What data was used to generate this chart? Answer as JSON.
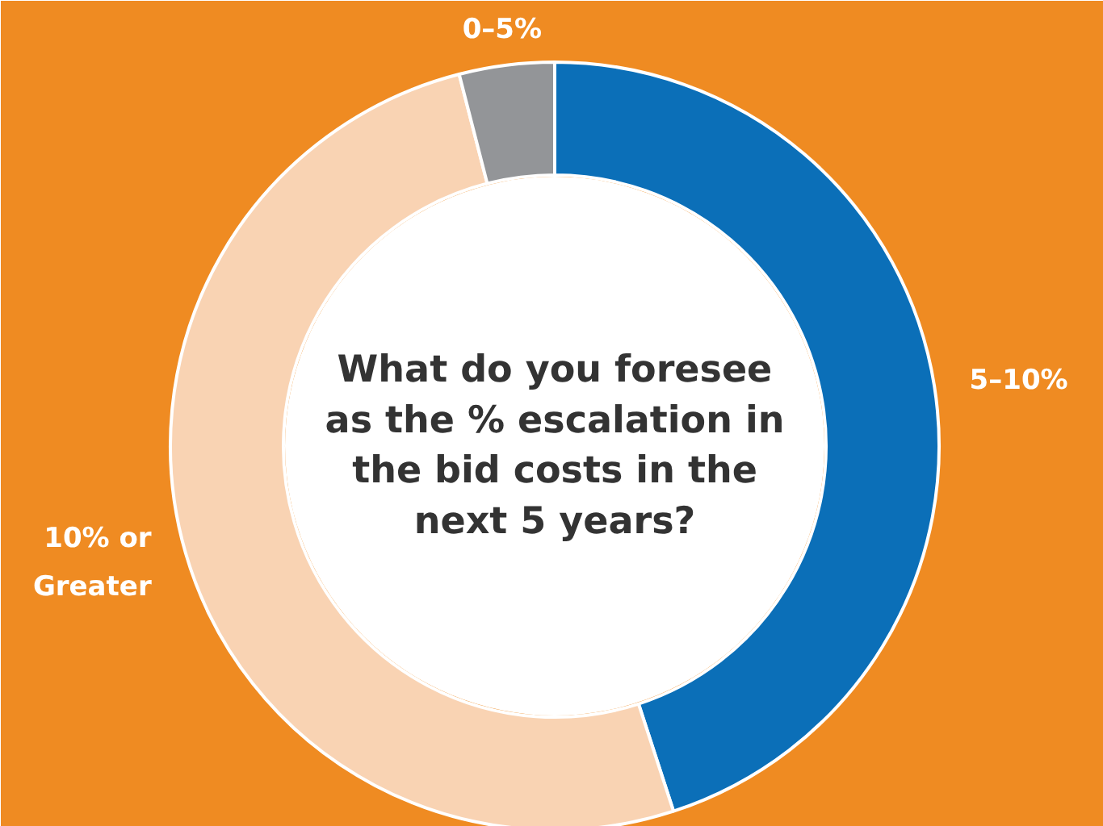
{
  "chart_data": {
    "type": "donut",
    "title": "What do you foresee\nas the % escalation in\nthe bid costs in the\nnext 5 years?",
    "categories": [
      "5–10%",
      "10% or\nGreater",
      "0–5%"
    ],
    "values": [
      45,
      51,
      4
    ],
    "colors": [
      "#0b6fb8",
      "#f9d3b3",
      "#939598"
    ]
  }
}
